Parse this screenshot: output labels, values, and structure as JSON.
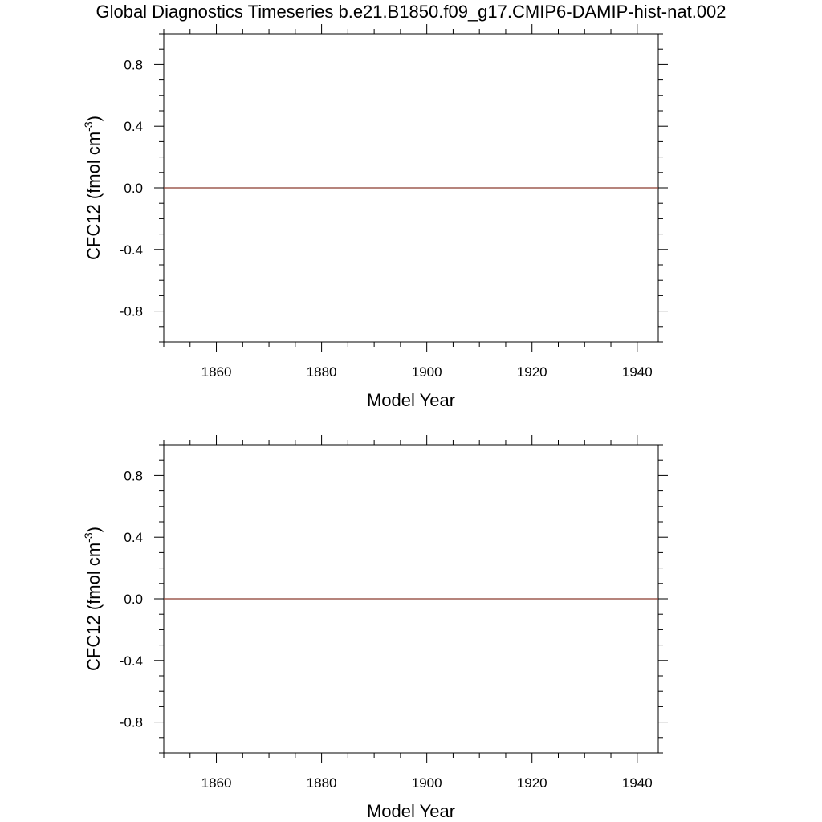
{
  "title": "Global Diagnostics Timeseries b.e21.B1850.f09_g17.CMIP6-DAMIP-hist-nat.002",
  "colors": {
    "line": "#8b3a2e",
    "axis": "#000000",
    "background": "#ffffff"
  },
  "chart_data": [
    {
      "type": "line",
      "xlabel": "Model Year",
      "ylabel": "CFC12 (fmol cm",
      "ylabel_sup": "-3",
      "ylabel_close": ")",
      "xlim": [
        1850,
        1944
      ],
      "ylim": [
        -1.0,
        1.0
      ],
      "xticks": [
        1860,
        1880,
        1900,
        1920,
        1940
      ],
      "xtick_labels": [
        "1860",
        "1880",
        "1900",
        "1920",
        "1940"
      ],
      "yticks": [
        0.8,
        0.4,
        0.0,
        -0.4,
        -0.8
      ],
      "ytick_labels": [
        "0.8",
        "0.4",
        "0.0",
        "-0.4",
        "-0.8"
      ],
      "grid": false,
      "series": [
        {
          "x": [
            1850,
            1944
          ],
          "y": [
            0.0,
            0.0
          ]
        }
      ]
    },
    {
      "type": "line",
      "xlabel": "Model Year",
      "ylabel": "CFC12 (fmol cm",
      "ylabel_sup": "-3",
      "ylabel_close": ")",
      "xlim": [
        1850,
        1944
      ],
      "ylim": [
        -1.0,
        1.0
      ],
      "xticks": [
        1860,
        1880,
        1900,
        1920,
        1940
      ],
      "xtick_labels": [
        "1860",
        "1880",
        "1900",
        "1920",
        "1940"
      ],
      "yticks": [
        0.8,
        0.4,
        0.0,
        -0.4,
        -0.8
      ],
      "ytick_labels": [
        "0.8",
        "0.4",
        "0.0",
        "-0.4",
        "-0.8"
      ],
      "grid": false,
      "series": [
        {
          "x": [
            1850,
            1944
          ],
          "y": [
            0.0,
            0.0
          ]
        }
      ]
    }
  ]
}
